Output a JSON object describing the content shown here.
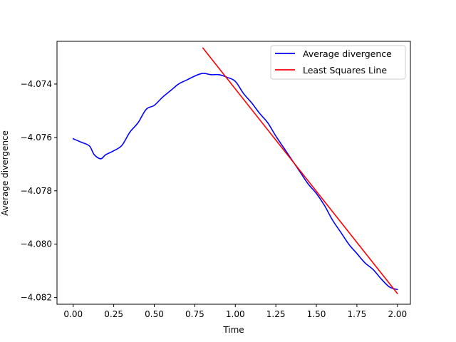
{
  "chart_data": {
    "type": "line",
    "title": "",
    "xlabel": "Time",
    "ylabel": "Average divergence",
    "xlim": [
      -0.1,
      2.08
    ],
    "ylim": [
      -4.08225,
      -4.0724
    ],
    "xticks": [
      0.0,
      0.25,
      0.5,
      0.75,
      1.0,
      1.25,
      1.5,
      1.75,
      2.0
    ],
    "xtick_labels": [
      "0.00",
      "0.25",
      "0.50",
      "0.75",
      "1.00",
      "1.25",
      "1.50",
      "1.75",
      "2.00"
    ],
    "yticks": [
      -4.082,
      -4.08,
      -4.078,
      -4.076,
      -4.074
    ],
    "ytick_labels": [
      "−4.082",
      "−4.080",
      "−4.078",
      "−4.076",
      "−4.074"
    ],
    "grid": false,
    "legend_position": "top-right",
    "series": [
      {
        "name": "Average divergence",
        "color": "#0000ff",
        "x": [
          0.0,
          0.05,
          0.1,
          0.13,
          0.17,
          0.2,
          0.25,
          0.3,
          0.35,
          0.4,
          0.45,
          0.5,
          0.55,
          0.6,
          0.65,
          0.7,
          0.75,
          0.8,
          0.85,
          0.9,
          0.95,
          1.0,
          1.05,
          1.1,
          1.15,
          1.2,
          1.25,
          1.3,
          1.35,
          1.4,
          1.45,
          1.5,
          1.55,
          1.6,
          1.65,
          1.7,
          1.75,
          1.8,
          1.85,
          1.9,
          1.95,
          2.0
        ],
        "y": [
          -4.07605,
          -4.07618,
          -4.07632,
          -4.07665,
          -4.0768,
          -4.07665,
          -4.0765,
          -4.0763,
          -4.0758,
          -4.07545,
          -4.07495,
          -4.0748,
          -4.0745,
          -4.07425,
          -4.074,
          -4.07385,
          -4.0737,
          -4.0736,
          -4.07365,
          -4.07365,
          -4.07375,
          -4.0739,
          -4.07435,
          -4.0747,
          -4.0751,
          -4.07545,
          -4.07595,
          -4.0764,
          -4.07685,
          -4.0773,
          -4.07775,
          -4.0781,
          -4.07855,
          -4.0791,
          -4.07955,
          -4.08,
          -4.08035,
          -4.0807,
          -4.08095,
          -4.0813,
          -4.0816,
          -4.0817
        ]
      },
      {
        "name": "Least Squares Line",
        "color": "#ff0000",
        "x": [
          0.8,
          2.0
        ],
        "y": [
          -4.07265,
          -4.08185
        ]
      }
    ]
  }
}
